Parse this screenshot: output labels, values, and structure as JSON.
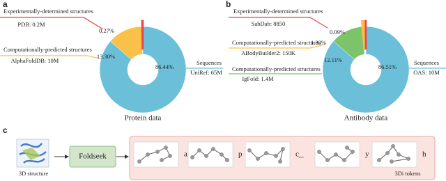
{
  "chart_data": [
    {
      "type": "pie",
      "panel": "a",
      "title": "Protein data",
      "categories": [
        "Experimentally-determined structures",
        "Computationally-predicted structures",
        "Sequences"
      ],
      "sources": [
        "PDB: 0.2M",
        "AlphaFoldDB: 10M",
        "UniRef: 65M"
      ],
      "values": [
        0.27,
        13.3,
        86.44
      ],
      "value_labels": [
        "0.27%",
        "13.30%",
        "86.44%"
      ],
      "colors": [
        "#e8474a",
        "#f9c04a",
        "#6bbfd9"
      ]
    },
    {
      "type": "pie",
      "panel": "b",
      "title": "Antibody data",
      "categories": [
        "Experimentally-determined structures",
        "Computationally-predicted structures",
        "Computationally-predicted structures",
        "Sequences"
      ],
      "sources": [
        "SabDab: 8850",
        "ABodyBuilder2: 150K",
        "IgFold: 1.4M",
        "OAS: 10M"
      ],
      "values": [
        0.09,
        1.3,
        12.11,
        86.51
      ],
      "value_labels": [
        "0.09%",
        "1.30%",
        "12.11%",
        "86.51%"
      ],
      "colors": [
        "#e8474a",
        "#f9c04a",
        "#7cc36a",
        "#6bbfd9"
      ]
    }
  ],
  "diagram": {
    "panel": "c",
    "input": "3D structure",
    "tool": "Foldseek",
    "tokens": [
      "a",
      "p",
      "c",
      "y",
      "h"
    ],
    "ellipsis": "...",
    "output": "3Di tokens"
  }
}
